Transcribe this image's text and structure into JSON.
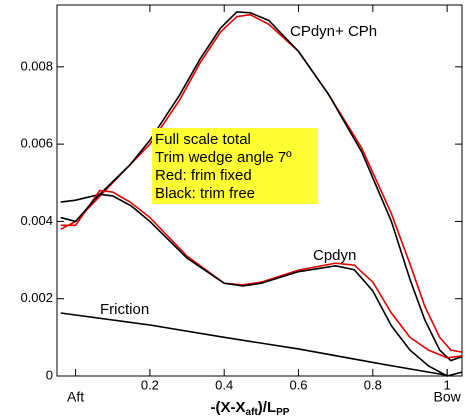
{
  "chart_data": {
    "type": "line",
    "xlim": [
      -0.05,
      1.04
    ],
    "ylim": [
      0,
      0.0096
    ],
    "xticks": [
      0.2,
      0.4,
      0.6,
      0.8,
      1
    ],
    "x_end_labels": [
      {
        "value": 0,
        "label": "Aft"
      },
      {
        "value": 1,
        "label": "Bow"
      }
    ],
    "yticks": [
      0,
      0.002,
      0.004,
      0.006,
      0.008
    ],
    "x_label_parts": [
      "-(X-X",
      "aft",
      ")/L",
      "PP"
    ],
    "annotations": [
      "CPdyn+ CPh",
      "Cpdyn",
      "Friction"
    ],
    "note_box": {
      "color": "#ffff33",
      "lines": [
        "Full scale total",
        "Trim wedge angle 7º",
        "Red: frim fixed",
        "Black: trim free"
      ]
    },
    "series": [
      {
        "color": "#e00000",
        "x": [
          -0.04,
          0,
          0.065,
          0.2,
          0.28,
          0.335,
          0.39,
          0.434,
          0.47,
          0.52,
          0.6,
          0.68,
          0.77,
          0.85,
          0.9,
          0.94,
          0.98,
          1.01,
          1.04
        ],
        "values": [
          0.0038,
          0.004,
          0.00465,
          0.006,
          0.00714,
          0.0081,
          0.0089,
          0.0093,
          0.00935,
          0.0091,
          0.0084,
          0.0073,
          0.0059,
          0.0042,
          0.0029,
          0.0018,
          0.001,
          0.00067,
          0.00062
        ]
      },
      {
        "color": "#000000",
        "x": [
          -0.04,
          0,
          0.065,
          0.146,
          0.2,
          0.28,
          0.335,
          0.39,
          0.434,
          0.47,
          0.52,
          0.6,
          0.68,
          0.77,
          0.85,
          0.9,
          0.94,
          0.98,
          1.01,
          1.04
        ],
        "values": [
          0.0045,
          0.00455,
          0.0047,
          0.00546,
          0.0061,
          0.00727,
          0.0082,
          0.009,
          0.00942,
          0.0094,
          0.0092,
          0.0084,
          0.0073,
          0.0058,
          0.004,
          0.0025,
          0.00145,
          0.00067,
          0.0004,
          0.0005
        ]
      },
      {
        "color": "#e00000",
        "x": [
          -0.04,
          0,
          0.065,
          0.1,
          0.15,
          0.2,
          0.3,
          0.4,
          0.45,
          0.5,
          0.6,
          0.7,
          0.75,
          0.8,
          0.85,
          0.9,
          0.95,
          1.0,
          1.04
        ],
        "values": [
          0.0039,
          0.0039,
          0.0048,
          0.00476,
          0.00448,
          0.0041,
          0.0031,
          0.0024,
          0.00236,
          0.00243,
          0.00274,
          0.00292,
          0.00287,
          0.00243,
          0.00163,
          0.001,
          0.00067,
          0.00047,
          0.00052
        ]
      },
      {
        "color": "#000000",
        "x": [
          -0.04,
          0,
          0.05,
          0.065,
          0.1,
          0.15,
          0.2,
          0.3,
          0.4,
          0.45,
          0.5,
          0.6,
          0.7,
          0.75,
          0.8,
          0.85,
          0.9,
          0.95,
          1.0,
          1.04
        ],
        "values": [
          0.0041,
          0.004,
          0.00455,
          0.0047,
          0.00466,
          0.0044,
          0.004,
          0.00305,
          0.0024,
          0.00233,
          0.0024,
          0.0027,
          0.00285,
          0.00275,
          0.0022,
          0.0013,
          0.00067,
          0.00026,
          0,
          0.0001
        ]
      },
      {
        "color": "#000000",
        "x": [
          -0.04,
          0.2,
          0.4,
          0.6,
          0.8,
          0.95,
          1.0
        ],
        "values": [
          0.00163,
          0.00132,
          0.001,
          0.0007,
          0.00035,
          0.0001,
          2e-05
        ]
      }
    ]
  }
}
